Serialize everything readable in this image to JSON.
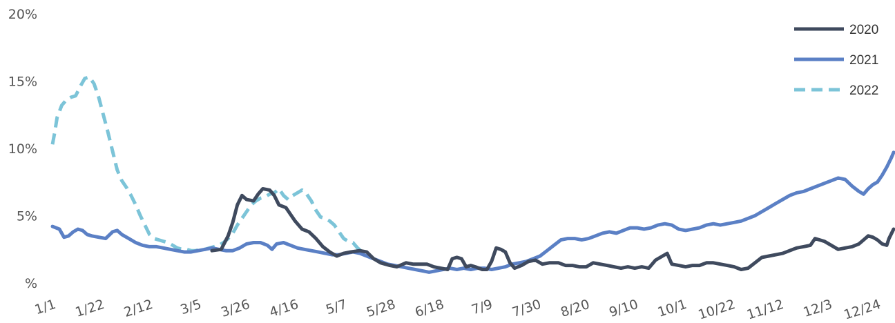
{
  "chart_data": {
    "type": "line",
    "title": "",
    "xlabel": "",
    "ylabel": "",
    "ylim": [
      0,
      20
    ],
    "y_ticks": [
      {
        "value": 0,
        "label": "%"
      },
      {
        "value": 5,
        "label": "5%"
      },
      {
        "value": 10,
        "label": "10%"
      },
      {
        "value": 15,
        "label": "15%"
      },
      {
        "value": 20,
        "label": "20%"
      }
    ],
    "x_range_days": [
      1,
      365
    ],
    "x_ticks": [
      {
        "day": 1,
        "label": "1/1"
      },
      {
        "day": 22,
        "label": "1/22"
      },
      {
        "day": 43,
        "label": "2/12"
      },
      {
        "day": 64,
        "label": "3/5"
      },
      {
        "day": 85,
        "label": "3/26"
      },
      {
        "day": 106,
        "label": "4/16"
      },
      {
        "day": 127,
        "label": "5/7"
      },
      {
        "day": 148,
        "label": "5/28"
      },
      {
        "day": 169,
        "label": "6/18"
      },
      {
        "day": 190,
        "label": "7/9"
      },
      {
        "day": 211,
        "label": "7/30"
      },
      {
        "day": 232,
        "label": "8/20"
      },
      {
        "day": 253,
        "label": "9/10"
      },
      {
        "day": 274,
        "label": "10/1"
      },
      {
        "day": 295,
        "label": "10/22"
      },
      {
        "day": 316,
        "label": "11/12"
      },
      {
        "day": 337,
        "label": "12/3"
      },
      {
        "day": 358,
        "label": "12/24"
      }
    ],
    "grid": false,
    "legend": "top-right",
    "series": [
      {
        "name": "2020",
        "color": "#3f4a5e",
        "dash": false,
        "points": [
          [
            1,
            null
          ],
          [
            70,
            2.4
          ],
          [
            74,
            2.5
          ],
          [
            77,
            3.5
          ],
          [
            79,
            4.5
          ],
          [
            81,
            5.8
          ],
          [
            83,
            6.5
          ],
          [
            85,
            6.2
          ],
          [
            88,
            6.1
          ],
          [
            90,
            6.6
          ],
          [
            92,
            7.0
          ],
          [
            95,
            6.9
          ],
          [
            97,
            6.5
          ],
          [
            99,
            5.8
          ],
          [
            102,
            5.6
          ],
          [
            104,
            5.1
          ],
          [
            106,
            4.6
          ],
          [
            109,
            4.0
          ],
          [
            112,
            3.8
          ],
          [
            115,
            3.3
          ],
          [
            118,
            2.7
          ],
          [
            121,
            2.3
          ],
          [
            124,
            2.0
          ],
          [
            127,
            2.2
          ],
          [
            130,
            2.3
          ],
          [
            134,
            2.4
          ],
          [
            137,
            2.3
          ],
          [
            140,
            1.8
          ],
          [
            143,
            1.5
          ],
          [
            147,
            1.3
          ],
          [
            150,
            1.2
          ],
          [
            154,
            1.5
          ],
          [
            157,
            1.4
          ],
          [
            160,
            1.4
          ],
          [
            163,
            1.4
          ],
          [
            166,
            1.2
          ],
          [
            169,
            1.1
          ],
          [
            172,
            1.0
          ],
          [
            174,
            1.8
          ],
          [
            176,
            1.9
          ],
          [
            178,
            1.8
          ],
          [
            180,
            1.2
          ],
          [
            182,
            1.3
          ],
          [
            184,
            1.2
          ],
          [
            187,
            1.0
          ],
          [
            189,
            1.0
          ],
          [
            191,
            1.6
          ],
          [
            193,
            2.6
          ],
          [
            195,
            2.5
          ],
          [
            197,
            2.3
          ],
          [
            199,
            1.5
          ],
          [
            201,
            1.1
          ],
          [
            204,
            1.3
          ],
          [
            207,
            1.6
          ],
          [
            210,
            1.7
          ],
          [
            213,
            1.4
          ],
          [
            216,
            1.5
          ],
          [
            220,
            1.5
          ],
          [
            223,
            1.3
          ],
          [
            226,
            1.3
          ],
          [
            229,
            1.2
          ],
          [
            232,
            1.2
          ],
          [
            235,
            1.5
          ],
          [
            238,
            1.4
          ],
          [
            241,
            1.3
          ],
          [
            244,
            1.2
          ],
          [
            247,
            1.1
          ],
          [
            250,
            1.2
          ],
          [
            253,
            1.1
          ],
          [
            256,
            1.2
          ],
          [
            259,
            1.1
          ],
          [
            262,
            1.7
          ],
          [
            265,
            2.0
          ],
          [
            267,
            2.2
          ],
          [
            269,
            1.4
          ],
          [
            272,
            1.3
          ],
          [
            275,
            1.2
          ],
          [
            278,
            1.3
          ],
          [
            281,
            1.3
          ],
          [
            284,
            1.5
          ],
          [
            287,
            1.5
          ],
          [
            290,
            1.4
          ],
          [
            293,
            1.3
          ],
          [
            296,
            1.2
          ],
          [
            299,
            1.0
          ],
          [
            302,
            1.1
          ],
          [
            305,
            1.5
          ],
          [
            308,
            1.9
          ],
          [
            311,
            2.0
          ],
          [
            314,
            2.1
          ],
          [
            317,
            2.2
          ],
          [
            320,
            2.4
          ],
          [
            323,
            2.6
          ],
          [
            326,
            2.7
          ],
          [
            329,
            2.8
          ],
          [
            331,
            3.3
          ],
          [
            333,
            3.2
          ],
          [
            335,
            3.1
          ],
          [
            338,
            2.8
          ],
          [
            341,
            2.5
          ],
          [
            344,
            2.6
          ],
          [
            347,
            2.7
          ],
          [
            350,
            2.9
          ],
          [
            352,
            3.2
          ],
          [
            354,
            3.5
          ],
          [
            356,
            3.4
          ],
          [
            358,
            3.2
          ],
          [
            360,
            2.9
          ],
          [
            362,
            2.8
          ],
          [
            363,
            3.3
          ],
          [
            365,
            4.0
          ]
        ]
      },
      {
        "name": "2021",
        "color": "#5b80c5",
        "dash": false,
        "points": [
          [
            1,
            4.2
          ],
          [
            4,
            4.0
          ],
          [
            6,
            3.4
          ],
          [
            8,
            3.5
          ],
          [
            10,
            3.8
          ],
          [
            12,
            4.0
          ],
          [
            14,
            3.9
          ],
          [
            16,
            3.6
          ],
          [
            18,
            3.5
          ],
          [
            21,
            3.4
          ],
          [
            24,
            3.3
          ],
          [
            27,
            3.8
          ],
          [
            29,
            3.9
          ],
          [
            31,
            3.6
          ],
          [
            34,
            3.3
          ],
          [
            37,
            3.0
          ],
          [
            40,
            2.8
          ],
          [
            43,
            2.7
          ],
          [
            46,
            2.7
          ],
          [
            49,
            2.6
          ],
          [
            52,
            2.5
          ],
          [
            55,
            2.4
          ],
          [
            58,
            2.3
          ],
          [
            61,
            2.3
          ],
          [
            64,
            2.4
          ],
          [
            67,
            2.5
          ],
          [
            70,
            2.6
          ],
          [
            73,
            2.5
          ],
          [
            76,
            2.4
          ],
          [
            79,
            2.4
          ],
          [
            82,
            2.6
          ],
          [
            85,
            2.9
          ],
          [
            88,
            3.0
          ],
          [
            91,
            3.0
          ],
          [
            94,
            2.8
          ],
          [
            96,
            2.5
          ],
          [
            98,
            2.9
          ],
          [
            101,
            3.0
          ],
          [
            104,
            2.8
          ],
          [
            107,
            2.6
          ],
          [
            110,
            2.5
          ],
          [
            113,
            2.4
          ],
          [
            116,
            2.3
          ],
          [
            119,
            2.2
          ],
          [
            122,
            2.1
          ],
          [
            125,
            2.1
          ],
          [
            128,
            2.2
          ],
          [
            131,
            2.3
          ],
          [
            134,
            2.2
          ],
          [
            137,
            2.0
          ],
          [
            140,
            1.8
          ],
          [
            143,
            1.6
          ],
          [
            146,
            1.4
          ],
          [
            149,
            1.3
          ],
          [
            152,
            1.2
          ],
          [
            155,
            1.1
          ],
          [
            158,
            1.0
          ],
          [
            161,
            0.9
          ],
          [
            164,
            0.8
          ],
          [
            167,
            0.9
          ],
          [
            170,
            1.0
          ],
          [
            173,
            1.1
          ],
          [
            176,
            1.0
          ],
          [
            179,
            1.1
          ],
          [
            182,
            1.0
          ],
          [
            185,
            1.1
          ],
          [
            188,
            1.1
          ],
          [
            191,
            1.0
          ],
          [
            194,
            1.1
          ],
          [
            197,
            1.2
          ],
          [
            200,
            1.4
          ],
          [
            203,
            1.5
          ],
          [
            206,
            1.6
          ],
          [
            209,
            1.8
          ],
          [
            212,
            2.0
          ],
          [
            215,
            2.4
          ],
          [
            218,
            2.8
          ],
          [
            221,
            3.2
          ],
          [
            224,
            3.3
          ],
          [
            227,
            3.3
          ],
          [
            230,
            3.2
          ],
          [
            233,
            3.3
          ],
          [
            236,
            3.5
          ],
          [
            239,
            3.7
          ],
          [
            242,
            3.8
          ],
          [
            245,
            3.7
          ],
          [
            248,
            3.9
          ],
          [
            251,
            4.1
          ],
          [
            254,
            4.1
          ],
          [
            257,
            4.0
          ],
          [
            260,
            4.1
          ],
          [
            263,
            4.3
          ],
          [
            266,
            4.4
          ],
          [
            269,
            4.3
          ],
          [
            272,
            4.0
          ],
          [
            275,
            3.9
          ],
          [
            278,
            4.0
          ],
          [
            281,
            4.1
          ],
          [
            284,
            4.3
          ],
          [
            287,
            4.4
          ],
          [
            290,
            4.3
          ],
          [
            293,
            4.4
          ],
          [
            296,
            4.5
          ],
          [
            299,
            4.6
          ],
          [
            302,
            4.8
          ],
          [
            305,
            5.0
          ],
          [
            308,
            5.3
          ],
          [
            311,
            5.6
          ],
          [
            314,
            5.9
          ],
          [
            317,
            6.2
          ],
          [
            320,
            6.5
          ],
          [
            323,
            6.7
          ],
          [
            326,
            6.8
          ],
          [
            329,
            7.0
          ],
          [
            332,
            7.2
          ],
          [
            335,
            7.4
          ],
          [
            338,
            7.6
          ],
          [
            341,
            7.8
          ],
          [
            344,
            7.7
          ],
          [
            347,
            7.2
          ],
          [
            350,
            6.8
          ],
          [
            352,
            6.6
          ],
          [
            354,
            7.0
          ],
          [
            356,
            7.3
          ],
          [
            358,
            7.5
          ],
          [
            360,
            8.0
          ],
          [
            362,
            8.6
          ],
          [
            364,
            9.3
          ],
          [
            365,
            9.7
          ]
        ]
      },
      {
        "name": "2022",
        "color": "#7cc4d8",
        "dash": true,
        "points": [
          [
            1,
            10.3
          ],
          [
            2,
            11.2
          ],
          [
            3,
            12.3
          ],
          [
            5,
            13.2
          ],
          [
            7,
            13.6
          ],
          [
            9,
            13.8
          ],
          [
            11,
            13.9
          ],
          [
            13,
            14.6
          ],
          [
            15,
            15.2
          ],
          [
            17,
            15.3
          ],
          [
            19,
            14.8
          ],
          [
            21,
            13.8
          ],
          [
            23,
            12.5
          ],
          [
            25,
            11.2
          ],
          [
            27,
            9.8
          ],
          [
            29,
            8.4
          ],
          [
            31,
            7.6
          ],
          [
            33,
            7.1
          ],
          [
            35,
            6.5
          ],
          [
            37,
            5.8
          ],
          [
            39,
            5.0
          ],
          [
            41,
            4.3
          ],
          [
            43,
            3.6
          ],
          [
            45,
            3.3
          ],
          [
            47,
            3.2
          ],
          [
            49,
            3.1
          ],
          [
            51,
            3.0
          ],
          [
            53,
            2.8
          ],
          [
            55,
            2.6
          ],
          [
            57,
            2.5
          ],
          [
            59,
            2.5
          ],
          [
            61,
            2.4
          ],
          [
            63,
            2.4
          ],
          [
            65,
            2.5
          ],
          [
            67,
            2.5
          ],
          [
            69,
            2.6
          ],
          [
            71,
            2.7
          ],
          [
            73,
            2.8
          ],
          [
            75,
            3.0
          ],
          [
            77,
            3.3
          ],
          [
            79,
            3.7
          ],
          [
            81,
            4.3
          ],
          [
            83,
            4.8
          ],
          [
            85,
            5.3
          ],
          [
            87,
            5.8
          ],
          [
            89,
            6.1
          ],
          [
            91,
            6.3
          ],
          [
            93,
            6.4
          ],
          [
            95,
            6.6
          ],
          [
            97,
            6.7
          ],
          [
            99,
            7.0
          ],
          [
            101,
            6.5
          ],
          [
            103,
            6.2
          ],
          [
            105,
            6.5
          ],
          [
            107,
            6.7
          ],
          [
            109,
            6.9
          ],
          [
            111,
            6.6
          ],
          [
            113,
            6.1
          ],
          [
            115,
            5.4
          ],
          [
            117,
            4.9
          ],
          [
            119,
            4.8
          ],
          [
            121,
            4.6
          ],
          [
            123,
            4.3
          ],
          [
            125,
            3.8
          ],
          [
            127,
            3.3
          ],
          [
            129,
            3.1
          ],
          [
            131,
            3.0
          ],
          [
            133,
            2.6
          ],
          [
            135,
            2.3
          ]
        ]
      }
    ]
  }
}
